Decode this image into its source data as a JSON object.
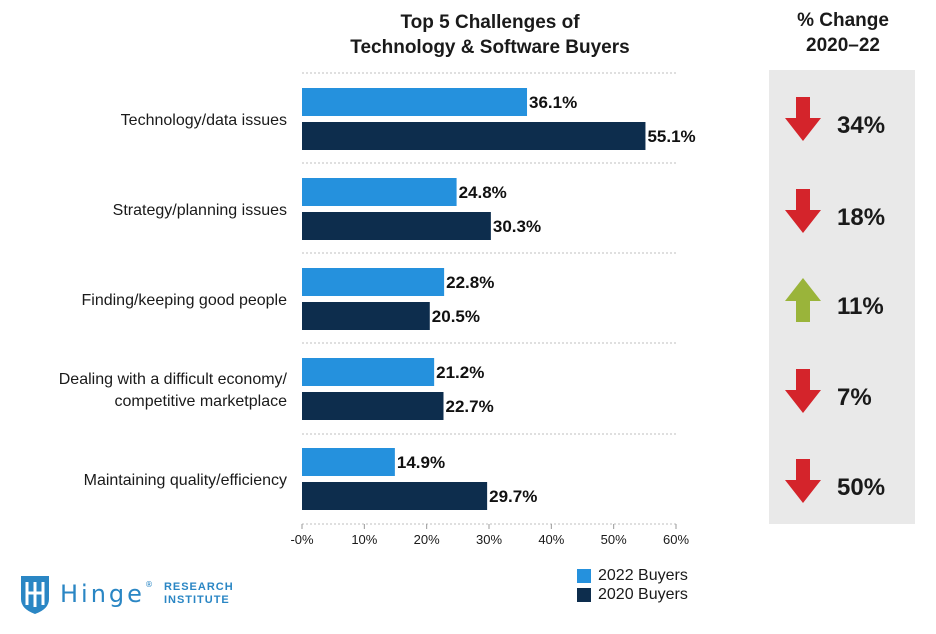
{
  "title_line1": "Top 5 Challenges of",
  "title_line2": "Technology & Software Buyers",
  "change_title_line1": "% Change",
  "change_title_line2": "2020–22",
  "chart_data": {
    "type": "bar",
    "orientation": "horizontal",
    "categories": [
      [
        "Technology/data issues"
      ],
      [
        "Strategy/planning issues"
      ],
      [
        "Finding/keeping good people"
      ],
      [
        "Dealing with a difficult economy/",
        "competitive marketplace"
      ],
      [
        "Maintaining quality/efficiency"
      ]
    ],
    "series": [
      {
        "name": "2022 Buyers",
        "color": "#2591dd",
        "values": [
          36.1,
          24.8,
          22.8,
          21.2,
          14.9
        ]
      },
      {
        "name": "2020 Buyers",
        "color": "#0d2d4d",
        "values": [
          55.1,
          30.3,
          20.5,
          22.7,
          29.7
        ]
      }
    ],
    "value_labels": [
      [
        "36.1%",
        "24.8%",
        "22.8%",
        "21.2%",
        "14.9%"
      ],
      [
        "55.1%",
        "30.3%",
        "20.5%",
        "22.7%",
        "29.7%"
      ]
    ],
    "xlim": [
      0,
      60
    ],
    "x_ticks": [
      0,
      10,
      20,
      30,
      40,
      50,
      60
    ],
    "x_tick_labels": [
      "-0%",
      "10%",
      "20%",
      "30%",
      "40%",
      "50%",
      "60%"
    ],
    "gridlines": "dotted horizontal separators",
    "legend_placement": "bottom-right"
  },
  "changes": [
    {
      "value": "34%",
      "direction": "down",
      "color": "#d4242b"
    },
    {
      "value": "18%",
      "direction": "down",
      "color": "#d4242b"
    },
    {
      "value": "11%",
      "direction": "up",
      "color": "#9ab43a"
    },
    {
      "value": "7%",
      "direction": "down",
      "color": "#d4242b"
    },
    {
      "value": "50%",
      "direction": "down",
      "color": "#d4242b"
    }
  ],
  "legend": [
    {
      "label": "2022 Buyers",
      "color": "#2591dd"
    },
    {
      "label": "2020 Buyers",
      "color": "#0d2d4d"
    }
  ],
  "logo": {
    "icon": "hinge-shield-icon",
    "word": "Hinge",
    "registered": "®",
    "line1": "RESEARCH",
    "line2": "INSTITUTE"
  }
}
